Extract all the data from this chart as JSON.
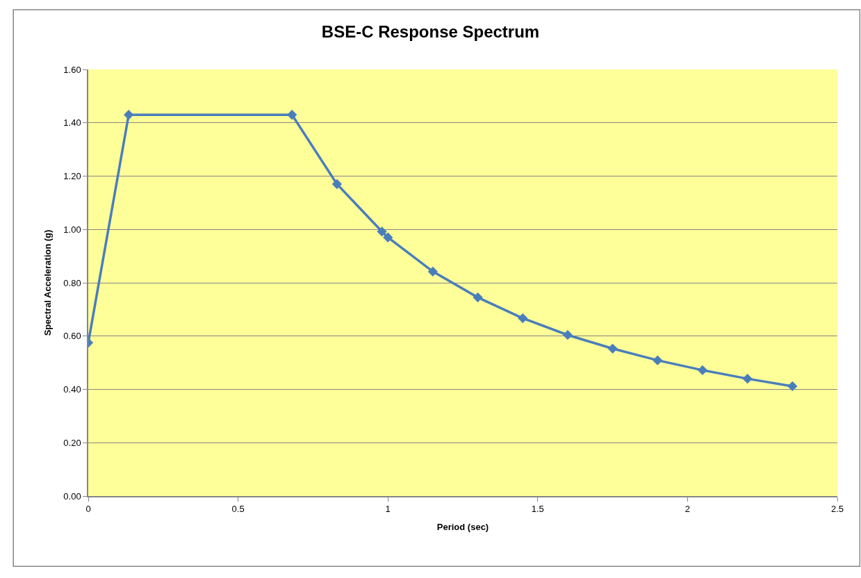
{
  "chart_data": {
    "type": "line",
    "title": "BSE-C Response Spectrum",
    "xlabel": "Period (sec)",
    "ylabel": "Spectral Acceleration (g)",
    "x": [
      0,
      0.135,
      0.68,
      0.83,
      0.98,
      1.0,
      1.15,
      1.3,
      1.45,
      1.6,
      1.75,
      1.9,
      2.05,
      2.2,
      2.35
    ],
    "series": [
      {
        "color": "#4a7ebb",
        "values": [
          0.575,
          1.43,
          1.43,
          1.17,
          0.992,
          0.97,
          0.842,
          0.745,
          0.667,
          0.604,
          0.553,
          0.509,
          0.472,
          0.44,
          0.412
        ]
      }
    ],
    "xlim": [
      0,
      2.5
    ],
    "xticks": [
      0,
      0.5,
      1,
      1.5,
      2,
      2.5
    ],
    "ylim": [
      0,
      1.6
    ],
    "yticks": [
      {
        "value": 0,
        "label": "0.00"
      },
      {
        "value": 0.2,
        "label": "0.20"
      },
      {
        "value": 0.4,
        "label": "0.40"
      },
      {
        "value": 0.6,
        "label": "0.60"
      },
      {
        "value": 0.8,
        "label": "0.80"
      },
      {
        "value": 1.0,
        "label": "1.00"
      },
      {
        "value": 1.2,
        "label": "1.20"
      },
      {
        "value": 1.4,
        "label": "1.40"
      },
      {
        "value": 1.6,
        "label": "1.60"
      }
    ],
    "grid": "y",
    "marker": "diamond",
    "line_style": "solid"
  }
}
